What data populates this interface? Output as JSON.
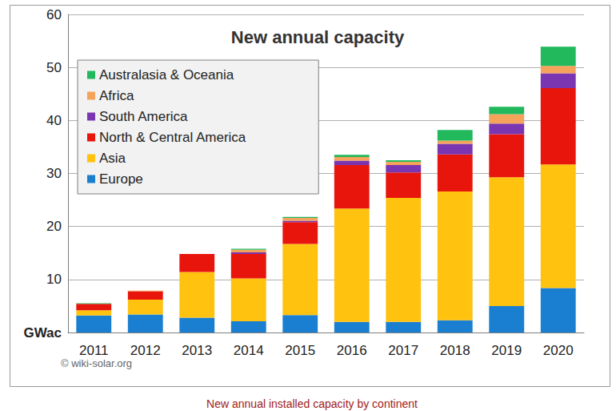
{
  "chart_data": {
    "type": "bar",
    "title": "New annual capacity",
    "caption": "New annual installed capacity by continent",
    "source": "© wiki-solar.org",
    "categories": [
      "2011",
      "2012",
      "2013",
      "2014",
      "2015",
      "2016",
      "2017",
      "2018",
      "2019",
      "2020"
    ],
    "series": [
      {
        "name": "Europe",
        "color": "#1b7fd1",
        "values": [
          3.2,
          3.4,
          2.8,
          2.1,
          3.3,
          2.0,
          2.0,
          2.3,
          5.0,
          8.4
        ]
      },
      {
        "name": "Asia",
        "color": "#ffc20e",
        "values": [
          1.0,
          2.8,
          8.6,
          8.1,
          13.4,
          21.4,
          23.4,
          24.3,
          24.3,
          23.3
        ]
      },
      {
        "name": "North & Central America",
        "color": "#e8150d",
        "values": [
          1.2,
          1.6,
          3.4,
          4.6,
          4.1,
          8.2,
          4.8,
          7.0,
          8.1,
          14.4
        ]
      },
      {
        "name": "South America",
        "color": "#7a35b0",
        "values": [
          0,
          0,
          0,
          0.3,
          0.3,
          0.8,
          1.4,
          2.0,
          2.0,
          2.8
        ]
      },
      {
        "name": "Africa",
        "color": "#f5a25a",
        "values": [
          0,
          0.1,
          0,
          0.5,
          0.5,
          0.7,
          0.6,
          0.6,
          1.8,
          1.4
        ]
      },
      {
        "name": "Australasia & Oceania",
        "color": "#22b85c",
        "values": [
          0.1,
          0,
          0,
          0.2,
          0.2,
          0.4,
          0.3,
          2.0,
          1.4,
          3.6
        ]
      }
    ],
    "stacked": true,
    "legend": "upper left",
    "grid": true,
    "ylim": [
      0,
      60
    ],
    "yticks": [
      {
        "value": 0,
        "label": "GWac"
      },
      10,
      20,
      30,
      40,
      50,
      60
    ]
  }
}
